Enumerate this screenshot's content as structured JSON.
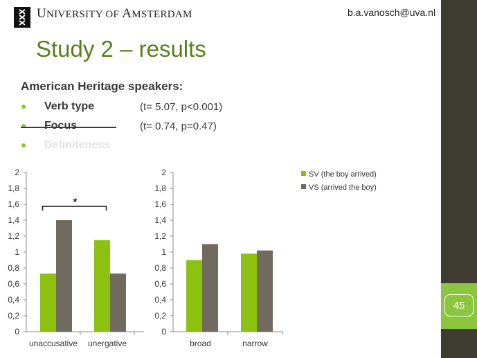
{
  "header": {
    "university_first": "U",
    "university_rest": "NIVERSITY OF ",
    "university_first2": "A",
    "university_rest2": "MSTERDAM",
    "email": "b.a.vanosch@uva.nl"
  },
  "slide": {
    "title": "Study 2 – results",
    "subtitle": "American Heritage speakers:",
    "page_number": "45",
    "bullets": [
      {
        "label": "Verb type",
        "stat": "(t= 5.07, p<0.001)"
      },
      {
        "label": "Focus",
        "stat": "(t= 0.74, p=0.47)"
      },
      {
        "label": "Definiteness",
        "stat": ""
      }
    ]
  },
  "colors": {
    "sv": "#8cc20f",
    "vs": "#716a5e",
    "accent": "#5b7e1b",
    "bar_dark": "#3e3b31"
  },
  "chart_data": [
    {
      "type": "bar",
      "categories": [
        "unaccusative",
        "unergative"
      ],
      "series": [
        {
          "name": "SV (the boy arrived)",
          "values": [
            0.73,
            1.15
          ]
        },
        {
          "name": "VS (arrived the boy)",
          "values": [
            1.4,
            0.73
          ]
        }
      ],
      "ylim": [
        0,
        2
      ],
      "yticks": [
        "0",
        "0,2",
        "0,4",
        "0,6",
        "0,8",
        "1",
        "1,2",
        "1,4",
        "1,6",
        "1,8",
        "2"
      ],
      "annotation": "*",
      "grid": false
    },
    {
      "type": "bar",
      "categories": [
        "broad",
        "narrow"
      ],
      "series": [
        {
          "name": "SV (the boy arrived)",
          "values": [
            0.9,
            0.98
          ]
        },
        {
          "name": "VS (arrived the boy)",
          "values": [
            1.1,
            1.02
          ]
        }
      ],
      "ylim": [
        0,
        2
      ],
      "yticks": [
        "0",
        "0,2",
        "0,4",
        "0,6",
        "0,8",
        "1",
        "1,2",
        "1,4",
        "1,6",
        "1,8",
        "2"
      ],
      "legend_position": "right",
      "grid": false
    }
  ]
}
